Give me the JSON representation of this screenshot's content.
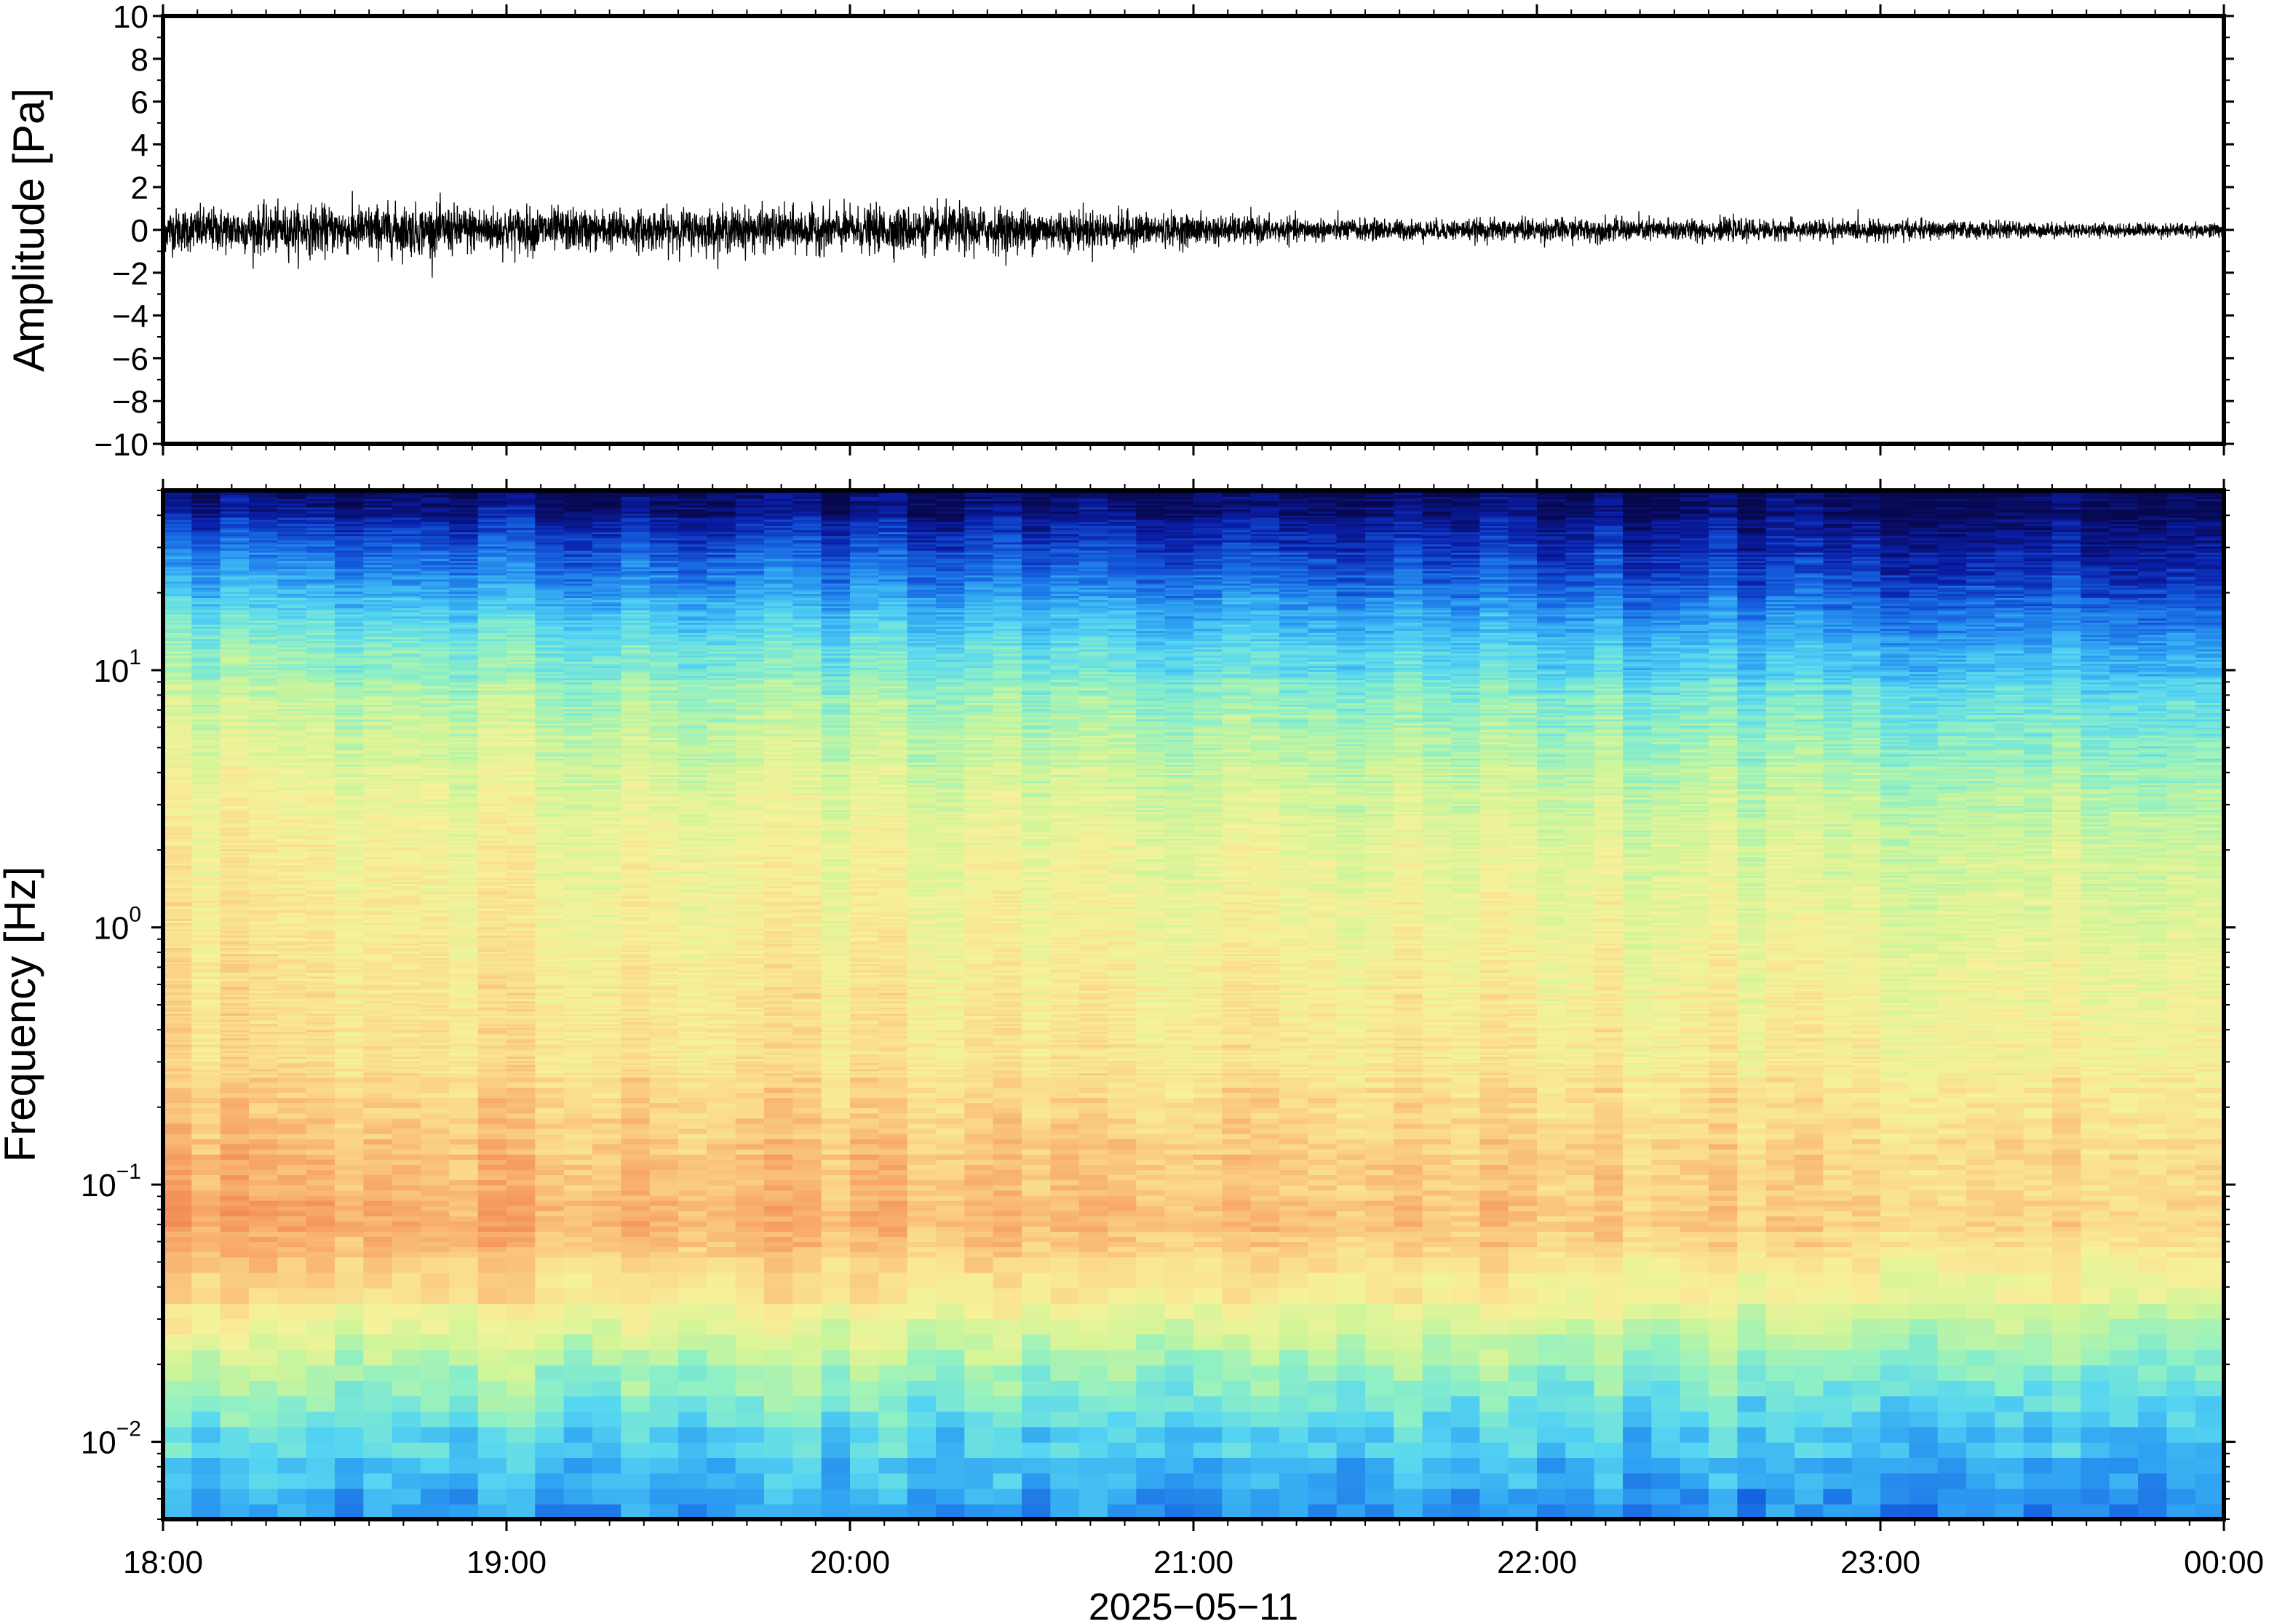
{
  "chart_data": [
    {
      "type": "line",
      "panel": "waveform",
      "title": "",
      "xlabel": "",
      "ylabel": "Amplitude [Pa]",
      "ylim": [
        -10,
        10
      ],
      "yticks": [
        -10,
        -8,
        -6,
        -4,
        -2,
        0,
        2,
        4,
        6,
        8,
        10
      ],
      "ytick_labels": [
        "−10",
        "−8",
        "−6",
        "−4",
        "−2",
        "0",
        "2",
        "4",
        "6",
        "8",
        "10"
      ],
      "xlim": [
        "2025-05-11T18:00",
        "2025-05-12T00:00"
      ],
      "envelope": {
        "time": [
          "18:00",
          "18:20",
          "18:40",
          "19:00",
          "19:20",
          "19:40",
          "20:00",
          "20:20",
          "20:40",
          "21:00",
          "21:20",
          "21:40",
          "22:00",
          "22:20",
          "22:40",
          "23:00",
          "23:20",
          "23:40",
          "24:00"
        ],
        "amplitude": [
          1.3,
          1.4,
          1.5,
          1.4,
          1.2,
          1.3,
          1.3,
          1.4,
          1.2,
          0.9,
          0.7,
          0.6,
          0.7,
          0.7,
          0.6,
          0.6,
          0.5,
          0.4,
          0.45
        ]
      },
      "color": "#000000"
    },
    {
      "type": "heatmap",
      "panel": "spectrogram",
      "title": "",
      "xlabel": "2025−05−11",
      "ylabel": "Frequency [Hz]",
      "yscale": "log",
      "ylim": [
        0.005,
        50
      ],
      "yticks": [
        0.01,
        0.1,
        1,
        10
      ],
      "ytick_labels": [
        {
          "base": "10",
          "exp": "−2"
        },
        {
          "base": "10",
          "exp": "−1"
        },
        {
          "base": "10",
          "exp": "0"
        },
        {
          "base": "10",
          "exp": "1"
        }
      ],
      "xticks": [
        "18:00",
        "19:00",
        "20:00",
        "21:00",
        "22:00",
        "23:00",
        "00:00"
      ],
      "colormap": [
        "#08084f",
        "#0a1ea8",
        "#1560e0",
        "#2fa2f2",
        "#56d6f2",
        "#8ff0c4",
        "#d0f598",
        "#f6f29a",
        "#fbd98c",
        "#f8b070",
        "#f28a55"
      ],
      "levels": [
        {
          "frequency": 50,
          "level_start": 0.0,
          "level_end": 0.0
        },
        {
          "frequency": 30,
          "level_start": 0.22,
          "level_end": 0.08
        },
        {
          "frequency": 15,
          "level_start": 0.45,
          "level_end": 0.25
        },
        {
          "frequency": 8,
          "level_start": 0.58,
          "level_end": 0.42
        },
        {
          "frequency": 3,
          "level_start": 0.7,
          "level_end": 0.58
        },
        {
          "frequency": 1,
          "level_start": 0.74,
          "level_end": 0.66
        },
        {
          "frequency": 0.3,
          "level_start": 0.78,
          "level_end": 0.72
        },
        {
          "frequency": 0.15,
          "level_start": 0.86,
          "level_end": 0.78
        },
        {
          "frequency": 0.07,
          "level_start": 0.93,
          "level_end": 0.8
        },
        {
          "frequency": 0.04,
          "level_start": 0.8,
          "level_end": 0.68
        },
        {
          "frequency": 0.02,
          "level_start": 0.58,
          "level_end": 0.5
        },
        {
          "frequency": 0.01,
          "level_start": 0.42,
          "level_end": 0.36
        },
        {
          "frequency": 0.005,
          "level_start": 0.3,
          "level_end": 0.26
        }
      ]
    }
  ]
}
